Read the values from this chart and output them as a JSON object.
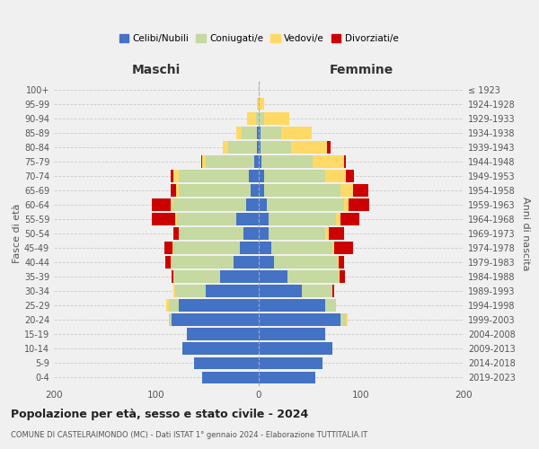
{
  "age_groups": [
    "0-4",
    "5-9",
    "10-14",
    "15-19",
    "20-24",
    "25-29",
    "30-34",
    "35-39",
    "40-44",
    "45-49",
    "50-54",
    "55-59",
    "60-64",
    "65-69",
    "70-74",
    "75-79",
    "80-84",
    "85-89",
    "90-94",
    "95-99",
    "100+"
  ],
  "birth_years": [
    "2019-2023",
    "2014-2018",
    "2009-2013",
    "2004-2008",
    "1999-2003",
    "1994-1998",
    "1989-1993",
    "1984-1988",
    "1979-1983",
    "1974-1978",
    "1969-1973",
    "1964-1968",
    "1959-1963",
    "1954-1958",
    "1949-1953",
    "1944-1948",
    "1939-1943",
    "1934-1938",
    "1929-1933",
    "1924-1928",
    "≤ 1923"
  ],
  "colors": {
    "celibe": "#4472C4",
    "coniugato": "#C5D9A0",
    "vedovo": "#FFD966",
    "divorziato": "#CC0000"
  },
  "maschi": {
    "celibe": [
      55,
      63,
      75,
      70,
      85,
      78,
      52,
      38,
      25,
      18,
      15,
      22,
      12,
      8,
      10,
      4,
      2,
      2,
      0,
      0,
      0
    ],
    "coniugato": [
      0,
      0,
      0,
      0,
      3,
      10,
      30,
      45,
      60,
      65,
      62,
      58,
      72,
      70,
      68,
      48,
      28,
      15,
      3,
      0,
      0
    ],
    "vedovo": [
      0,
      0,
      0,
      0,
      0,
      2,
      1,
      0,
      1,
      1,
      1,
      2,
      2,
      3,
      5,
      3,
      5,
      5,
      8,
      2,
      0
    ],
    "divorziato": [
      0,
      0,
      0,
      0,
      0,
      0,
      0,
      2,
      5,
      8,
      5,
      22,
      18,
      5,
      3,
      1,
      0,
      0,
      0,
      0,
      0
    ]
  },
  "femmine": {
    "nubile": [
      55,
      62,
      72,
      65,
      80,
      65,
      42,
      28,
      15,
      12,
      10,
      10,
      8,
      5,
      5,
      3,
      2,
      2,
      0,
      0,
      0
    ],
    "coniugata": [
      0,
      0,
      0,
      0,
      5,
      10,
      30,
      50,
      62,
      60,
      55,
      65,
      75,
      75,
      60,
      50,
      30,
      20,
      5,
      0,
      0
    ],
    "vedova": [
      0,
      0,
      0,
      0,
      2,
      0,
      0,
      1,
      1,
      2,
      3,
      5,
      5,
      12,
      20,
      30,
      35,
      30,
      25,
      5,
      1
    ],
    "divorziata": [
      0,
      0,
      0,
      0,
      0,
      0,
      2,
      5,
      5,
      18,
      15,
      18,
      20,
      15,
      8,
      2,
      3,
      0,
      0,
      0,
      0
    ]
  },
  "xlim": 200,
  "title": "Popolazione per età, sesso e stato civile - 2024",
  "subtitle": "COMUNE DI CASTELRAIMONDO (MC) - Dati ISTAT 1° gennaio 2024 - Elaborazione TUTTITALIA.IT",
  "ylabel_left": "Fasce di età",
  "ylabel_right": "Anni di nascita",
  "xlabel_left": "Maschi",
  "xlabel_right": "Femmine",
  "bg_color": "#f0f0f0",
  "plot_bg": "#f0f0f0"
}
